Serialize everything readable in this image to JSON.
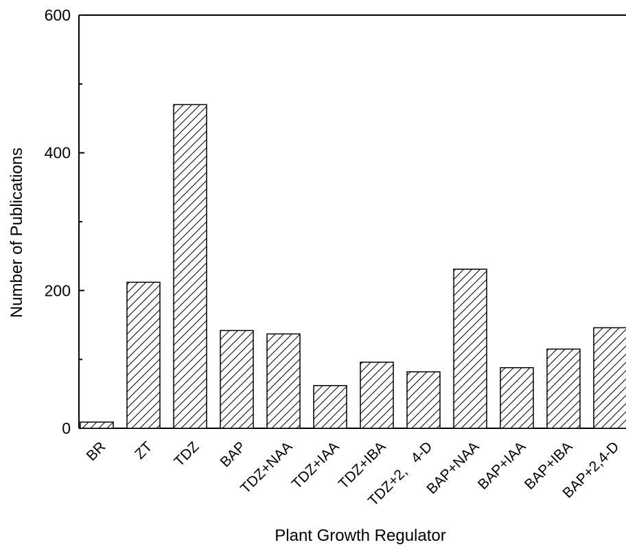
{
  "chart_data": {
    "type": "bar",
    "xlabel": "Plant Growth Regulator",
    "ylabel": "Number of Publications",
    "ylim": [
      0,
      600
    ],
    "yticks": [
      0,
      200,
      400,
      600
    ],
    "grid": false,
    "bar_pattern": "diagonal-hatch",
    "categories": [
      "BR",
      "ZT",
      "TDZ",
      "BAP",
      "TDZ+NAA",
      "TDZ+IAA",
      "TDZ+IBA",
      "TDZ+2,   4-D",
      "BAP+NAA",
      "BAP+IAA",
      "BAP+IBA",
      "BAP+2,4-D"
    ],
    "values": [
      9,
      212,
      470,
      142,
      137,
      62,
      96,
      82,
      231,
      88,
      115,
      146
    ]
  }
}
